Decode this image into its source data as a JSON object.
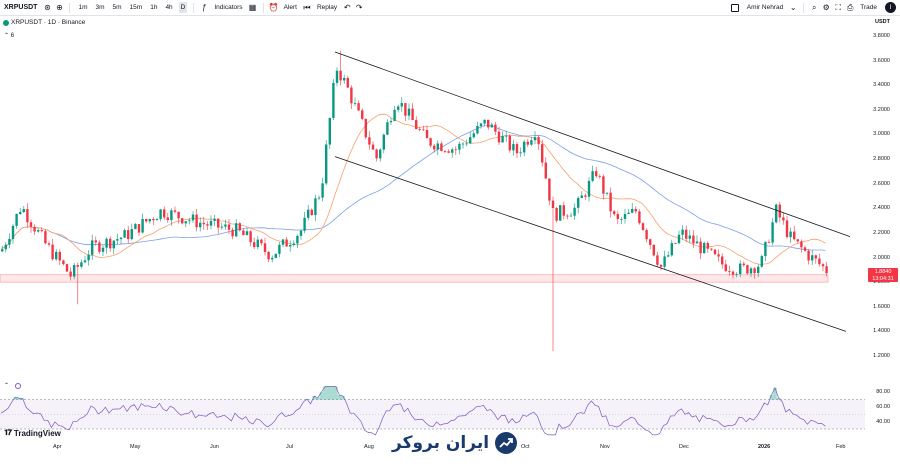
{
  "toolbar": {
    "symbol": "XRPUSDT",
    "intervals": [
      "1m",
      "3m",
      "5m",
      "15m",
      "1h",
      "4h",
      "D"
    ],
    "active_interval": "D",
    "indicators_label": "Indicators",
    "alert_label": "Alert",
    "replay_label": "Replay",
    "user_name": "Amir Nehrad",
    "trade_label": "Trade"
  },
  "legend": {
    "title": "XRPUSDT · 1D · Binance",
    "sub": "6"
  },
  "price_axis": {
    "currency": "USDT",
    "ticks": [
      "3.8000",
      "3.6000",
      "3.4000",
      "3.2000",
      "3.0000",
      "2.8000",
      "2.6000",
      "2.4000",
      "2.2000",
      "2.0000",
      "1.8000",
      "1.6000",
      "1.4000",
      "1.2000"
    ],
    "current_price": "1.8840",
    "countdown": "13:04:31"
  },
  "rsi_axis": {
    "ticks": [
      "80.00",
      "60.00",
      "40.00"
    ]
  },
  "time_axis": [
    "Apr",
    "May",
    "Jun",
    "Jul",
    "Aug",
    "Oct",
    "Nov",
    "Dec",
    "2026",
    "Feb"
  ],
  "watermark": "TradingView",
  "brand": "ایران بروکر",
  "colors": {
    "up": "#089981",
    "down": "#f23645",
    "ma_fast": "#f7a072",
    "ma_slow": "#7e9ee8",
    "rsi": "#7e57c2"
  },
  "chart_data": {
    "type": "candlestick",
    "ylim": [
      1.2,
      3.8
    ],
    "channel": {
      "upper": [
        [
          "Jul",
          3.67
        ],
        [
          "Jan",
          2.17
        ]
      ],
      "lower": [
        [
          "Jul",
          2.82
        ],
        [
          "Jan",
          1.4
        ]
      ]
    },
    "support_zone": [
      1.8,
      1.86
    ],
    "rsi_levels": [
      70,
      30
    ]
  }
}
